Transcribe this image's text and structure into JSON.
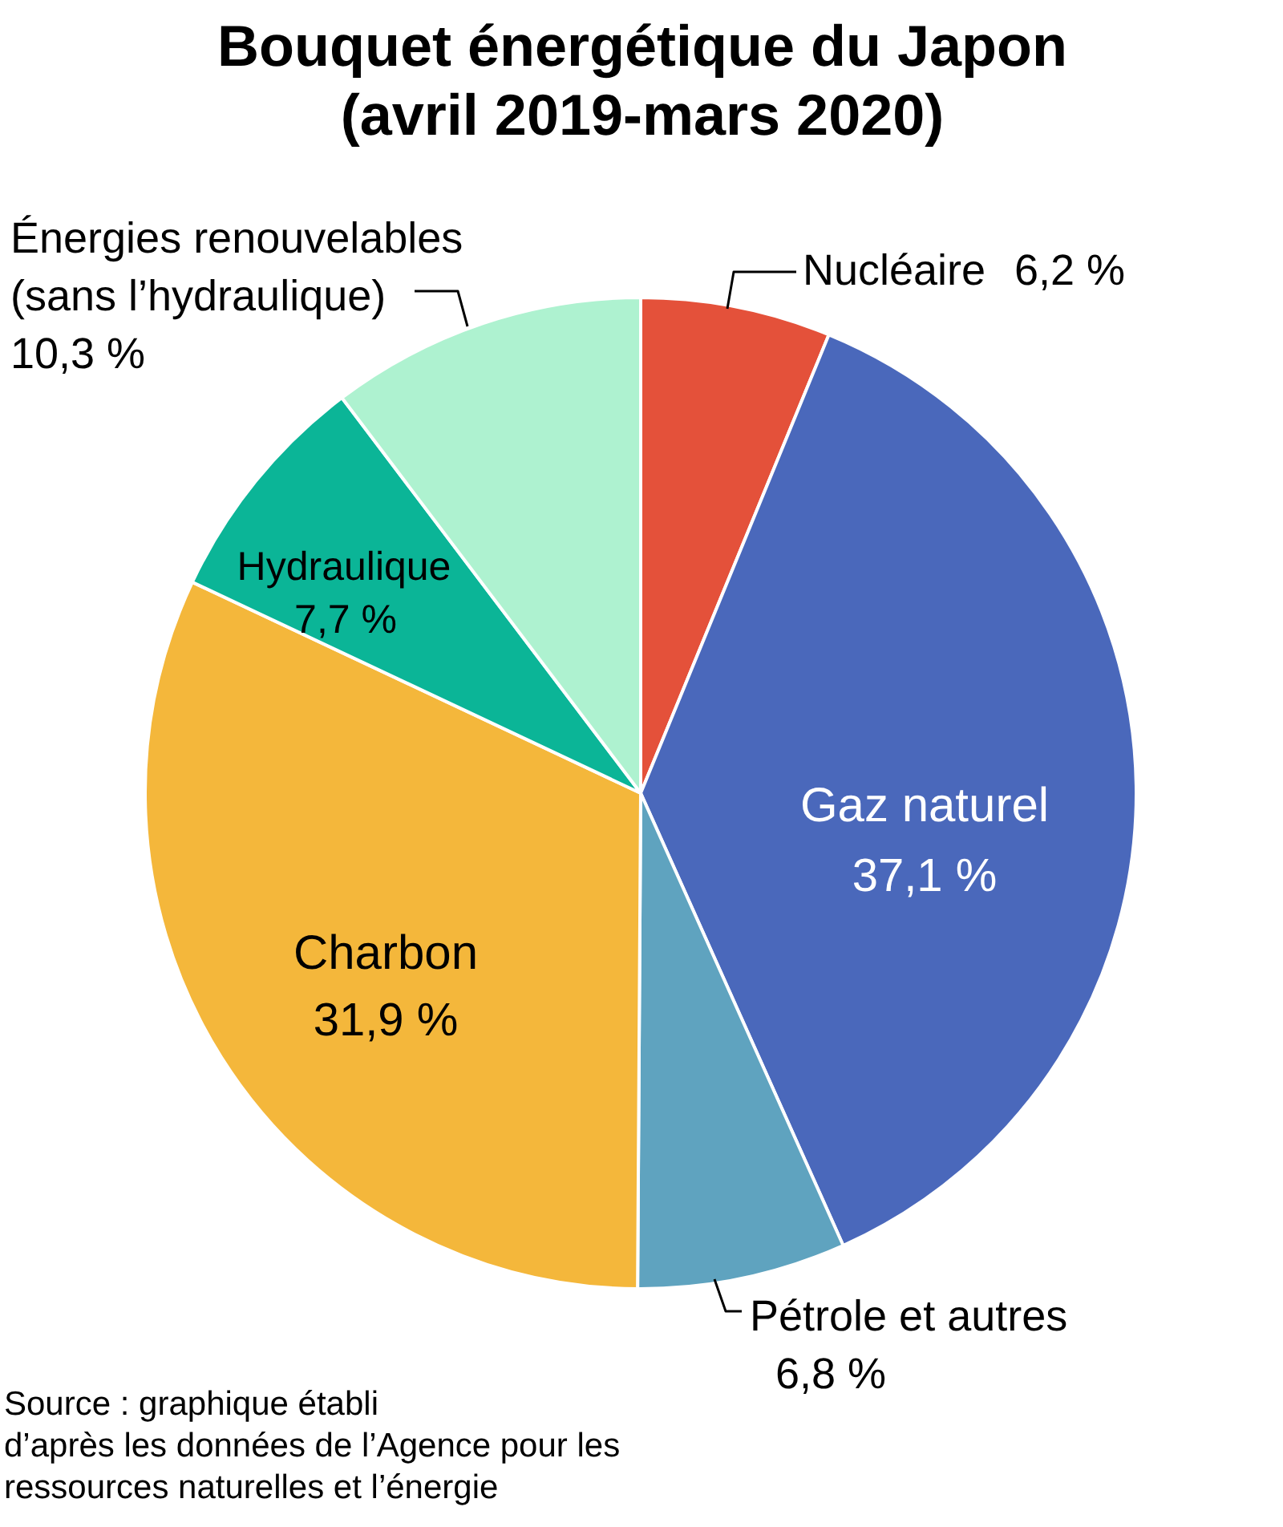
{
  "chart_data": {
    "type": "pie",
    "title": "Bouquet énergétique du Japon\n(avril 2019-mars 2020)",
    "categories": [
      "Nucléaire",
      "Gaz naturel",
      "Pétrole et autres",
      "Charbon",
      "Hydraulique",
      "Énergies renouvelables\n(sans l’hydraulique)"
    ],
    "values": [
      6.2,
      37.1,
      6.8,
      31.9,
      7.7,
      10.3
    ],
    "colors": [
      "#e4513a",
      "#4a68bb",
      "#5fa3bf",
      "#f4b73b",
      "#0bb597",
      "#aef2d0"
    ],
    "value_labels": [
      "6,2 %",
      "37,1 %",
      "6,8 %",
      "31,9 %",
      "7,7 %",
      "10,3 %"
    ],
    "annotations": [
      "Source : graphique établi\nd’après les données de l’Agence pour les\nressources naturelles et l’énergie"
    ]
  }
}
